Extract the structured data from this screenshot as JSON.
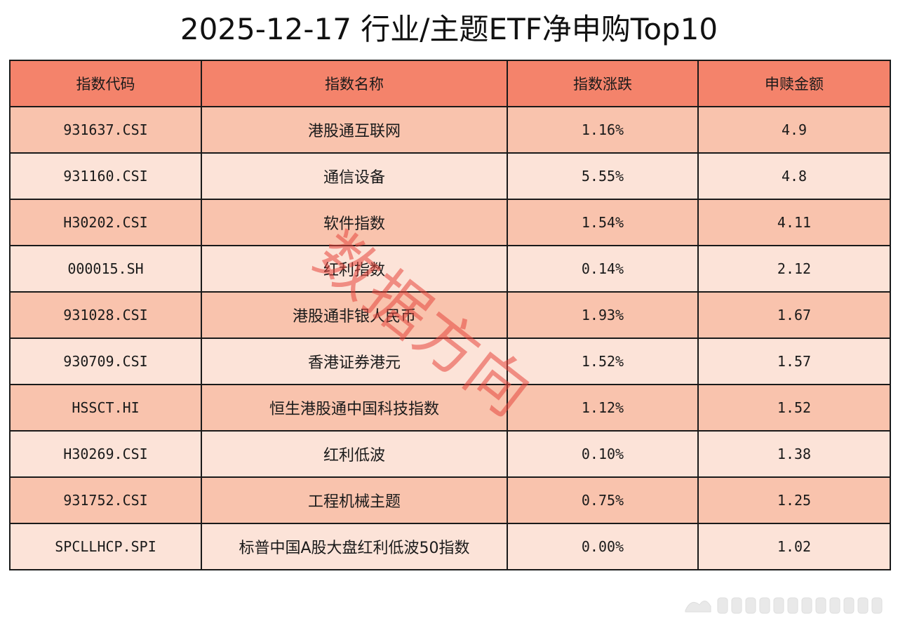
{
  "title": "2025-12-17 行业/主题ETF净申购Top10",
  "watermark": "数据方向",
  "colors": {
    "header_bg": "#f4836b",
    "row_odd_bg": "#f9c3ad",
    "row_even_bg": "#fce3d8",
    "watermark": "#e6463c"
  },
  "chart_data": {
    "type": "table",
    "title": "2025-12-17 行业/主题ETF净申购Top10",
    "columns": [
      "指数代码",
      "指数名称",
      "指数涨跌",
      "申赎金额"
    ],
    "rows": [
      [
        "931637.CSI",
        "港股通互联网",
        "1.16%",
        "4.9"
      ],
      [
        "931160.CSI",
        "通信设备",
        "5.55%",
        "4.8"
      ],
      [
        "H30202.CSI",
        "软件指数",
        "1.54%",
        "4.11"
      ],
      [
        "000015.SH",
        "红利指数",
        "0.14%",
        "2.12"
      ],
      [
        "931028.CSI",
        "港股通非银人民币",
        "1.93%",
        "1.67"
      ],
      [
        "930709.CSI",
        "香港证券港元",
        "1.52%",
        "1.57"
      ],
      [
        "HSSCT.HI",
        "恒生港股通中国科技指数",
        "1.12%",
        "1.52"
      ],
      [
        "H30269.CSI",
        "红利低波",
        "0.10%",
        "1.38"
      ],
      [
        "931752.CSI",
        "工程机械主题",
        "0.75%",
        "1.25"
      ],
      [
        "SPCLLHCP.SPI",
        "标普中国A股大盘红利低波50指数",
        "0.00%",
        "1.02"
      ]
    ]
  }
}
